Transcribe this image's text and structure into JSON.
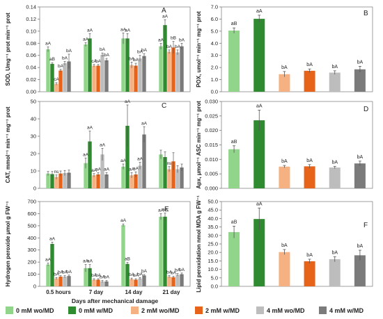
{
  "colors": {
    "0mM_wo": "#90D58A",
    "0mM_w": "#2F8B2F",
    "2mM_wo": "#F6B183",
    "2mM_w": "#E8631A",
    "4mM_wo": "#BDBDBD",
    "4mM_w": "#7B7B7B"
  },
  "legend": [
    {
      "key": "0mM_wo",
      "label": "0 mM wo/MD"
    },
    {
      "key": "0mM_w",
      "label": "0 mM w/MD"
    },
    {
      "key": "2mM_wo",
      "label": "2 mM wo/MD"
    },
    {
      "key": "2mM_w",
      "label": "2 mM w/MD"
    },
    {
      "key": "4mM_wo",
      "label": "4 mM wo/MD"
    },
    {
      "key": "4mM_w",
      "label": "4 mM w/MD"
    }
  ],
  "chart_data": [
    {
      "panel": "A",
      "type": "bar",
      "ylabel": "SOD, Umg⁻¹ prot min⁻¹ prot",
      "ylim": [
        0,
        0.14
      ],
      "yticks": [
        "0.00",
        "0.02",
        "0.04",
        "0.06",
        "0.08",
        "0.10",
        "0.12",
        "0.14"
      ],
      "ytick_values": [
        0,
        0.02,
        0.04,
        0.06,
        0.08,
        0.1,
        0.12,
        0.14
      ],
      "categories": [
        "0.5 hours",
        "7 day",
        "14 day",
        "21 day"
      ],
      "show_xlabels": false,
      "values": [
        [
          0.07,
          0.046,
          0.013,
          0.035,
          0.047,
          0.05
        ],
        [
          0.078,
          0.088,
          0.043,
          0.043,
          0.061,
          0.052
        ],
        [
          0.088,
          0.088,
          0.044,
          0.043,
          0.055,
          0.059
        ],
        [
          0.075,
          0.11,
          0.066,
          0.073,
          0.065,
          0.075
        ]
      ],
      "errors": [
        [
          0.004,
          0.002,
          0.002,
          0.002,
          0.003,
          0.012
        ],
        [
          0.003,
          0.008,
          0.002,
          0.002,
          0.003,
          0.003
        ],
        [
          0.009,
          0.008,
          0.005,
          0.004,
          0.005,
          0.004
        ],
        [
          0.005,
          0.009,
          0.003,
          0.01,
          0.004,
          0.005
        ]
      ],
      "labels": [
        [
          "aA",
          "aB",
          "cA",
          "bA",
          "bA",
          "bA"
        ],
        [
          "aA",
          "aA",
          "cA",
          "bA",
          "bA",
          "bA"
        ],
        [
          "aA",
          "aA",
          "bA",
          "bA",
          "bA",
          "bA"
        ],
        [
          "aA",
          "aA",
          "bA",
          "bB",
          "bA",
          "bA"
        ]
      ]
    },
    {
      "panel": "B",
      "type": "bar",
      "ylabel": "POX, umol⁻¹ min⁻¹ mg⁻¹ prot",
      "ylim": [
        0,
        7
      ],
      "yticks": [
        "0.0",
        "1.0",
        "2.0",
        "3.0",
        "4.0",
        "5.0",
        "6.0",
        "7.0"
      ],
      "ytick_values": [
        0,
        1,
        2,
        3,
        4,
        5,
        6,
        7
      ],
      "values": [
        5.05,
        6.02,
        1.45,
        1.73,
        1.58,
        1.85
      ],
      "errors": [
        0.22,
        0.3,
        0.22,
        0.15,
        0.15,
        0.25
      ],
      "labels": [
        "aB",
        "aA",
        "bA",
        "bA",
        "bA",
        "bA"
      ]
    },
    {
      "panel": "C",
      "type": "bar",
      "ylabel": "CAT, mmol⁻¹ min⁻¹ mg⁻¹ prot",
      "ylim": [
        0,
        50
      ],
      "yticks": [
        "0",
        "10",
        "20",
        "30",
        "40",
        "50"
      ],
      "ytick_values": [
        0,
        10,
        20,
        30,
        40,
        50
      ],
      "categories": [
        "0.5 hours",
        "7 day",
        "14 day",
        "21 day"
      ],
      "show_xlabels": false,
      "values": [
        [
          8.5,
          8.2,
          6.5,
          8.5,
          8.8,
          9.0
        ],
        [
          14.5,
          27.0,
          7.5,
          8.0,
          19.5,
          8.0
        ],
        [
          12.5,
          36.0,
          7.5,
          8.0,
          13.0,
          31.0
        ],
        [
          19.5,
          18.0,
          11.0,
          15.5,
          11.0,
          12.0
        ]
      ],
      "errors": [
        [
          1.2,
          1.5,
          1.2,
          1.5,
          1.5,
          1.5
        ],
        [
          3.0,
          6.0,
          1.0,
          1.0,
          3.5,
          1.0
        ],
        [
          1.5,
          12.0,
          1.5,
          1.5,
          2.0,
          4.5
        ],
        [
          2.5,
          3.0,
          1.5,
          5.0,
          2.0,
          2.0
        ]
      ],
      "labels": [
        [
          "",
          "",
          "ns",
          "",
          "",
          ""
        ],
        [
          "aA",
          "aA",
          "aA",
          "aA",
          "aA",
          "aA"
        ],
        [
          "aA",
          "aA",
          "aA",
          "aA",
          "aA",
          "aA"
        ],
        [
          "",
          "",
          "ns",
          "",
          "",
          ""
        ]
      ]
    },
    {
      "panel": "D",
      "type": "bar",
      "ylabel": "Apx, μmol⁻¹ ASC min⁻¹ mg⁻¹ prot",
      "ylim": [
        0,
        0.03
      ],
      "yticks": [
        "0.000",
        "0.005",
        "0.010",
        "0.015",
        "0.020",
        "0.025",
        "0.030"
      ],
      "ytick_values": [
        0,
        0.005,
        0.01,
        0.015,
        0.02,
        0.025,
        0.03
      ],
      "values": [
        0.0135,
        0.0235,
        0.0075,
        0.0076,
        0.0072,
        0.0086
      ],
      "errors": [
        0.0012,
        0.0035,
        0.0004,
        0.0006,
        0.0004,
        0.0008
      ],
      "labels": [
        "aB",
        "aA",
        "bA",
        "bA",
        "bA",
        "bA"
      ]
    },
    {
      "panel": "E",
      "type": "bar",
      "ylabel": "Hydrogen peroxide μmol g FW⁻¹",
      "xlabel": "Days after mechanical damage",
      "ylim": [
        0,
        700
      ],
      "yticks": [
        "0",
        "100",
        "200",
        "300",
        "400",
        "500",
        "600",
        "700"
      ],
      "ytick_values": [
        0,
        100,
        200,
        300,
        400,
        500,
        600,
        700
      ],
      "categories": [
        "0.5 hours",
        "7 day",
        "14 day",
        "21 day"
      ],
      "show_xlabels": true,
      "values": [
        [
          180,
          350,
          65,
          80,
          80,
          85
        ],
        [
          150,
          150,
          55,
          55,
          40,
          40
        ],
        [
          505,
          185,
          60,
          55,
          65,
          90
        ],
        [
          575,
          575,
          80,
          75,
          95,
          100
        ]
      ],
      "errors": [
        [
          12,
          15,
          8,
          8,
          8,
          8
        ],
        [
          30,
          30,
          8,
          8,
          8,
          8
        ],
        [
          10,
          12,
          8,
          8,
          8,
          8
        ],
        [
          25,
          30,
          8,
          8,
          10,
          10
        ]
      ],
      "labels": [
        [
          "aA",
          "aA",
          "bA",
          "bA",
          "bA",
          "bA"
        ],
        [
          "aA",
          "aA",
          "bA",
          "bA",
          "bA",
          "bA"
        ],
        [
          "aA",
          "aB",
          "bA",
          "bA",
          "bA",
          "bA"
        ],
        [
          "aA",
          "aA",
          "bA",
          "bA",
          "bA",
          "bA"
        ]
      ]
    },
    {
      "panel": "F",
      "type": "bar",
      "ylabel": "Lipid peroxidation nmol MDA g FW⁻¹",
      "ylim": [
        0,
        50
      ],
      "yticks": [
        "0.0",
        "5.0",
        "10.0",
        "15.0",
        "20.0",
        "25.0",
        "30.0",
        "35.0",
        "40.0",
        "45.0",
        "50.0"
      ],
      "ytick_values": [
        0,
        5,
        10,
        15,
        20,
        25,
        30,
        35,
        40,
        45,
        50
      ],
      "values": [
        32.0,
        39.7,
        20.2,
        14.8,
        16.0,
        18.3
      ],
      "errors": [
        3.5,
        6.5,
        1.5,
        1.2,
        1.5,
        3.0
      ],
      "labels": [
        "aB",
        "aA",
        "bA",
        "bA",
        "bA",
        "bA"
      ]
    }
  ]
}
